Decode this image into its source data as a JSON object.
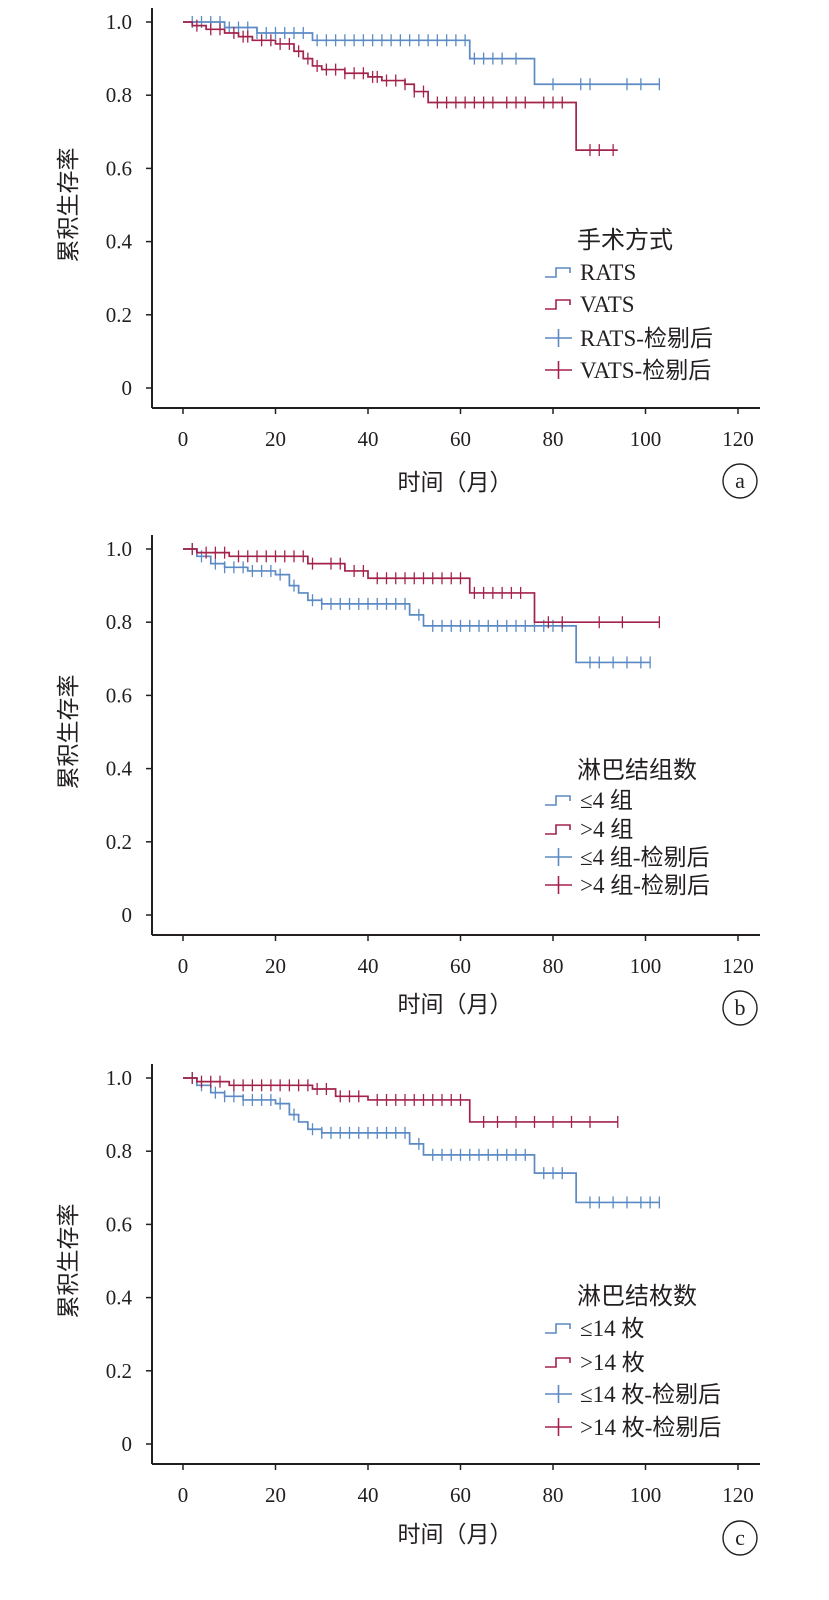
{
  "chart_data": [
    {
      "type": "line",
      "panel_label": "a",
      "xlabel": "时间（月）",
      "ylabel": "累积生存率",
      "xlim": [
        0,
        120
      ],
      "ylim": [
        0,
        1.0
      ],
      "xtick_values": [
        0,
        20,
        40,
        60,
        80,
        100,
        120
      ],
      "xtick_labels": [
        "0",
        "20",
        "40",
        "60",
        "80",
        "100",
        "120"
      ],
      "ytick_values": [
        1.0,
        0.8,
        0.6,
        0.4,
        0.2,
        0
      ],
      "ytick_labels": [
        "1.0",
        "0.8",
        "0.6",
        "0.4",
        "0.2",
        "0"
      ],
      "legend_title": "手术方式",
      "legend_position": "right-middle",
      "series": [
        {
          "name": "RATS",
          "censored_label": "RATS-检剔后",
          "color": "#5b8ac4",
          "steps": [
            [
              0,
              1.0
            ],
            [
              9,
              0.985
            ],
            [
              16,
              0.97
            ],
            [
              28,
              0.95
            ],
            [
              62,
              0.9
            ],
            [
              76,
              0.83
            ],
            [
              103,
              0.83
            ]
          ],
          "censored_x": [
            2,
            4,
            6,
            8,
            10,
            12,
            14,
            16,
            18,
            20,
            22,
            24,
            26,
            29,
            31,
            33,
            35,
            37,
            39,
            41,
            43,
            45,
            47,
            49,
            51,
            53,
            55,
            57,
            59,
            61,
            63,
            65,
            67,
            69,
            72,
            80,
            86,
            88,
            96,
            99,
            103
          ]
        },
        {
          "name": "VATS",
          "censored_label": "VATS-检剔后",
          "color": "#a3234b",
          "steps": [
            [
              0,
              1.0
            ],
            [
              2,
              0.99
            ],
            [
              5,
              0.98
            ],
            [
              9,
              0.97
            ],
            [
              12,
              0.96
            ],
            [
              15,
              0.95
            ],
            [
              20,
              0.94
            ],
            [
              24,
              0.92
            ],
            [
              26,
              0.9
            ],
            [
              28,
              0.88
            ],
            [
              30,
              0.87
            ],
            [
              35,
              0.86
            ],
            [
              40,
              0.85
            ],
            [
              43,
              0.84
            ],
            [
              48,
              0.83
            ],
            [
              50,
              0.81
            ],
            [
              53,
              0.78
            ],
            [
              85,
              0.78
            ],
            [
              85,
              0.65
            ],
            [
              94,
              0.65
            ]
          ],
          "censored_x": [
            3,
            6,
            8,
            11,
            13,
            14,
            17,
            19,
            21,
            23,
            25,
            27,
            29,
            31,
            33,
            35,
            37,
            39,
            41,
            42,
            44,
            46,
            48,
            50,
            52,
            55,
            57,
            59,
            61,
            63,
            65,
            67,
            70,
            72,
            74,
            78,
            80,
            82,
            88,
            90,
            93
          ]
        }
      ]
    },
    {
      "type": "line",
      "panel_label": "b",
      "xlabel": "时间（月）",
      "ylabel": "累积生存率",
      "xlim": [
        0,
        120
      ],
      "ylim": [
        0,
        1.0
      ],
      "xtick_values": [
        0,
        20,
        40,
        60,
        80,
        100,
        120
      ],
      "xtick_labels": [
        "0",
        "20",
        "40",
        "60",
        "80",
        "100",
        "120"
      ],
      "ytick_values": [
        1.0,
        0.8,
        0.6,
        0.4,
        0.2,
        0
      ],
      "ytick_labels": [
        "1.0",
        "0.8",
        "0.6",
        "0.4",
        "0.2",
        "0"
      ],
      "legend_title": "淋巴结组数",
      "legend_position": "right-middle",
      "series": [
        {
          "name": "≤4 组",
          "censored_label": "≤4 组-检剔后",
          "color": "#5b8ac4",
          "steps": [
            [
              0,
              1.0
            ],
            [
              3,
              0.98
            ],
            [
              6,
              0.96
            ],
            [
              9,
              0.95
            ],
            [
              14,
              0.94
            ],
            [
              20,
              0.93
            ],
            [
              23,
              0.9
            ],
            [
              25,
              0.88
            ],
            [
              27,
              0.86
            ],
            [
              30,
              0.85
            ],
            [
              49,
              0.82
            ],
            [
              52,
              0.79
            ],
            [
              85,
              0.79
            ],
            [
              85,
              0.69
            ],
            [
              101,
              0.69
            ]
          ],
          "censored_x": [
            2,
            4,
            7,
            9,
            11,
            13,
            15,
            17,
            19,
            21,
            24,
            28,
            30,
            32,
            34,
            36,
            38,
            40,
            42,
            44,
            46,
            48,
            51,
            54,
            56,
            58,
            60,
            62,
            64,
            66,
            68,
            70,
            72,
            74,
            76,
            78,
            80,
            82,
            88,
            90,
            93,
            96,
            99,
            101
          ]
        },
        {
          "name": ">4 组",
          "censored_label": ">4 组-检剔后",
          "color": "#a3234b",
          "steps": [
            [
              0,
              1.0
            ],
            [
              3,
              0.99
            ],
            [
              10,
              0.98
            ],
            [
              27,
              0.96
            ],
            [
              35,
              0.94
            ],
            [
              40,
              0.92
            ],
            [
              62,
              0.88
            ],
            [
              76,
              0.8
            ],
            [
              103,
              0.8
            ]
          ],
          "censored_x": [
            2,
            5,
            7,
            9,
            12,
            14,
            16,
            18,
            20,
            22,
            24,
            26,
            28,
            32,
            34,
            37,
            39,
            42,
            44,
            46,
            48,
            50,
            52,
            54,
            56,
            58,
            60,
            63,
            65,
            67,
            69,
            71,
            73,
            79,
            82,
            90,
            95,
            103
          ]
        }
      ]
    },
    {
      "type": "line",
      "panel_label": "c",
      "xlabel": "时间（月）",
      "ylabel": "累积生存率",
      "xlim": [
        0,
        120
      ],
      "ylim": [
        0,
        1.0
      ],
      "xtick_values": [
        0,
        20,
        40,
        60,
        80,
        100,
        120
      ],
      "xtick_labels": [
        "0",
        "20",
        "40",
        "60",
        "80",
        "100",
        "120"
      ],
      "ytick_values": [
        1.0,
        0.8,
        0.6,
        0.4,
        0.2,
        0
      ],
      "ytick_labels": [
        "1.0",
        "0.8",
        "0.6",
        "0.4",
        "0.2",
        "0"
      ],
      "legend_title": "淋巴结枚数",
      "legend_position": "right-middle",
      "series": [
        {
          "name": "≤14 枚",
          "censored_label": "≤14 枚-检剔后",
          "color": "#5b8ac4",
          "steps": [
            [
              0,
              1.0
            ],
            [
              3,
              0.98
            ],
            [
              6,
              0.96
            ],
            [
              9,
              0.95
            ],
            [
              13,
              0.94
            ],
            [
              20,
              0.93
            ],
            [
              23,
              0.9
            ],
            [
              25,
              0.88
            ],
            [
              27,
              0.86
            ],
            [
              30,
              0.85
            ],
            [
              49,
              0.82
            ],
            [
              52,
              0.79
            ],
            [
              76,
              0.74
            ],
            [
              85,
              0.66
            ],
            [
              103,
              0.66
            ]
          ],
          "censored_x": [
            2,
            4,
            7,
            9,
            11,
            13,
            15,
            17,
            19,
            21,
            24,
            28,
            30,
            32,
            34,
            36,
            38,
            40,
            42,
            44,
            46,
            48,
            51,
            54,
            56,
            58,
            60,
            62,
            64,
            66,
            68,
            70,
            72,
            74,
            78,
            80,
            82,
            88,
            90,
            93,
            96,
            99,
            101,
            103
          ]
        },
        {
          "name": ">14 枚",
          "censored_label": ">14 枚-检剔后",
          "color": "#a3234b",
          "steps": [
            [
              0,
              1.0
            ],
            [
              3,
              0.99
            ],
            [
              10,
              0.98
            ],
            [
              28,
              0.97
            ],
            [
              33,
              0.95
            ],
            [
              40,
              0.94
            ],
            [
              62,
              0.88
            ],
            [
              94,
              0.88
            ]
          ],
          "censored_x": [
            2,
            4,
            6,
            8,
            11,
            13,
            15,
            17,
            19,
            21,
            23,
            25,
            27,
            29,
            31,
            34,
            36,
            38,
            42,
            44,
            46,
            48,
            50,
            52,
            54,
            56,
            58,
            60,
            65,
            68,
            72,
            76,
            80,
            84,
            88,
            94
          ]
        }
      ]
    }
  ]
}
